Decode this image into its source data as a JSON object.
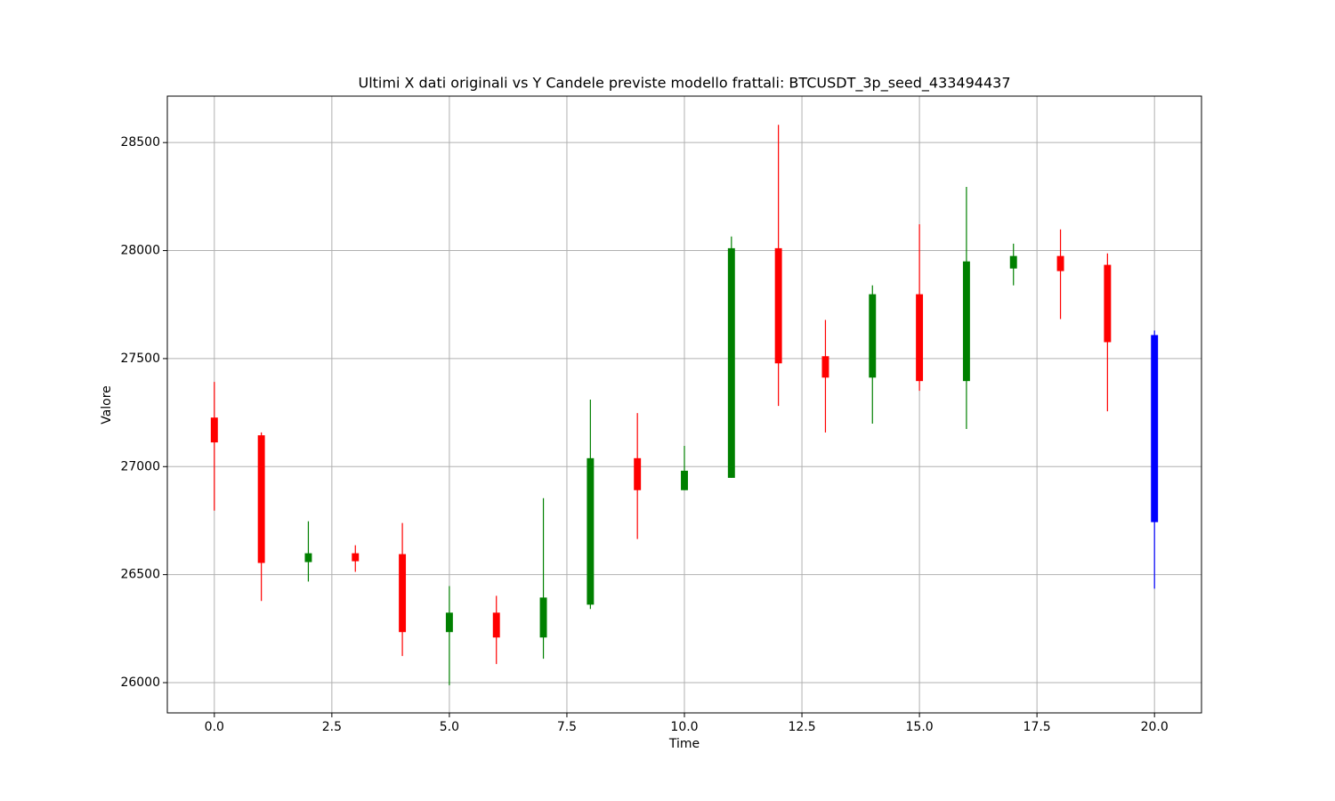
{
  "chart_data": {
    "type": "candlestick",
    "title": "Ultimi X dati originali vs Y Candele previste modello frattali: BTCUSDT_3p_seed_433494437",
    "x_label": "Time",
    "y_label": "Valore",
    "x": [
      0,
      1,
      2,
      3,
      4,
      5,
      6,
      7,
      8,
      9,
      10,
      11,
      12,
      13,
      14,
      15,
      16,
      17,
      18,
      19,
      20
    ],
    "open": [
      27227,
      27145,
      26558,
      26599,
      26595,
      26234,
      26324,
      26209,
      26361,
      27039,
      26891,
      26948,
      28011,
      27511,
      27412,
      27798,
      27396,
      27917,
      27975,
      27934,
      27609
    ],
    "high": [
      27392,
      27158,
      26747,
      26636,
      26739,
      26447,
      26402,
      26854,
      27310,
      27248,
      27096,
      28065,
      28582,
      27679,
      27839,
      28122,
      28295,
      28032,
      28098,
      27987,
      27630
    ],
    "low": [
      26796,
      26378,
      26468,
      26513,
      26123,
      25988,
      26086,
      26111,
      26341,
      26665,
      26891,
      26948,
      27281,
      27158,
      27199,
      27351,
      27174,
      27839,
      27683,
      27256,
      26435
    ],
    "close": [
      27112,
      26554,
      26599,
      26562,
      26234,
      26324,
      26209,
      26394,
      27039,
      26891,
      26981,
      28011,
      27478,
      27412,
      27798,
      27396,
      27950,
      27975,
      27905,
      27576,
      26743
    ],
    "colors": [
      "red",
      "red",
      "green",
      "red",
      "red",
      "green",
      "red",
      "green",
      "green",
      "red",
      "green",
      "green",
      "red",
      "red",
      "green",
      "red",
      "green",
      "green",
      "red",
      "red",
      "blue"
    ],
    "xlim": [
      -1,
      21
    ],
    "xticks": [
      {
        "value": 0,
        "label": "0.0"
      },
      {
        "value": 2.5,
        "label": "2.5"
      },
      {
        "value": 5,
        "label": "5.0"
      },
      {
        "value": 7.5,
        "label": "7.5"
      },
      {
        "value": 10,
        "label": "10.0"
      },
      {
        "value": 12.5,
        "label": "12.5"
      },
      {
        "value": 15,
        "label": "15.0"
      },
      {
        "value": 17.5,
        "label": "17.5"
      },
      {
        "value": 20,
        "label": "20.0"
      }
    ],
    "ylim": [
      25860,
      28715
    ],
    "yticks": [
      26000,
      26500,
      27000,
      27500,
      28000,
      28500
    ],
    "grid": true
  }
}
